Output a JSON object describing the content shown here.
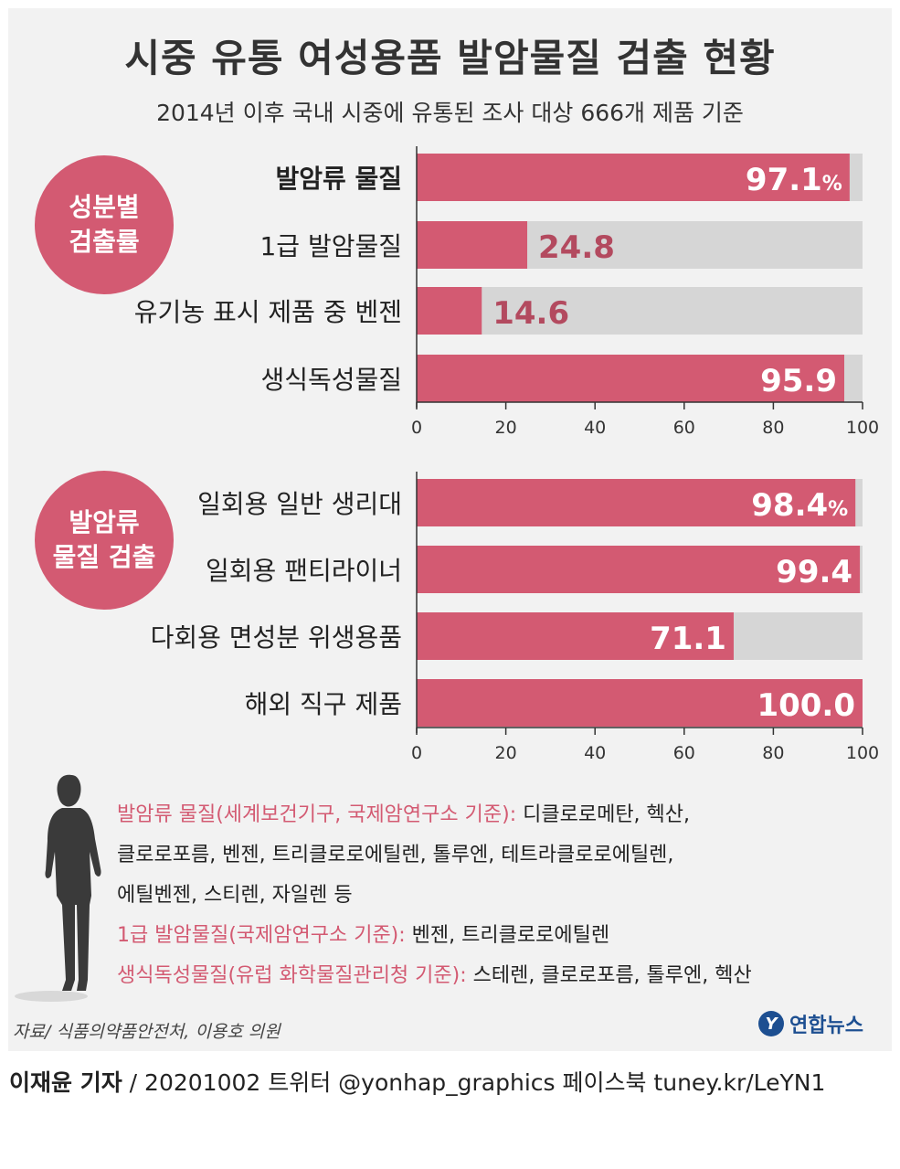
{
  "header": {
    "title": "시중 유통 여성용품 발암물질 검출 현황",
    "subtitle": "2014년 이후 국내 시중에 유통된 조사 대상 666개 제품 기준"
  },
  "chart_data": [
    {
      "type": "bar",
      "orientation": "horizontal",
      "title": "성분별 검출률",
      "categories": [
        "발암류 물질",
        "1급 발암물질",
        "유기농 표시 제품 중 벤젠",
        "생식독성물질"
      ],
      "values": [
        97.1,
        24.8,
        14.6,
        95.9
      ],
      "value_labels": [
        "97.1",
        "24.8",
        "14.6",
        "95.9"
      ],
      "unit": "%",
      "xlim": [
        0,
        100
      ],
      "ticks": [
        "0",
        "20",
        "40",
        "60",
        "80",
        "100"
      ]
    },
    {
      "type": "bar",
      "orientation": "horizontal",
      "title": "발암류 물질 검출",
      "categories": [
        "일회용 일반 생리대",
        "일회용 팬티라이너",
        "다회용 면성분 위생용품",
        "해외 직구 제품"
      ],
      "values": [
        98.4,
        99.4,
        71.1,
        100.0
      ],
      "value_labels": [
        "98.4",
        "99.4",
        "71.1",
        "100.0"
      ],
      "unit": "%",
      "xlim": [
        0,
        100
      ],
      "ticks": [
        "0",
        "20",
        "40",
        "60",
        "80",
        "100"
      ]
    }
  ],
  "badges": {
    "top_line1": "성분별",
    "top_line2": "검출률",
    "bottom_line1": "발암류",
    "bottom_line2": "물질 검출"
  },
  "notes": [
    {
      "key": "발암류 물질(세계보건기구, 국제암연구소 기준):",
      "text": " 디클로로메탄, 헥산,"
    },
    {
      "key": "",
      "text": "클로로포름, 벤젠, 트리클로로에틸렌, 톨루엔, 테트라클로로에틸렌,"
    },
    {
      "key": "",
      "text": "에틸벤젠, 스티렌, 자일렌 등"
    },
    {
      "key": "1급 발암물질(국제암연구소 기준):",
      "text": " 벤젠, 트리클로로에틸렌"
    },
    {
      "key": "생식독성물질(유럽 화학물질관리청 기준):",
      "text": " 스테렌, 클로로포름, 톨루엔, 헥산"
    }
  ],
  "source": "자료/ 식품의약품안전처, 이용호 의원",
  "logo": "연합뉴스",
  "footer": {
    "reporter": "이재윤 기자",
    "info": " / 20201002  트위터 @yonhap_graphics  페이스북 tuney.kr/LeYN1"
  },
  "colors": {
    "bar": "#d35a72",
    "track": "#d6d6d6",
    "panel": "#f2f2f2",
    "value_outside": "#b34a5f"
  }
}
